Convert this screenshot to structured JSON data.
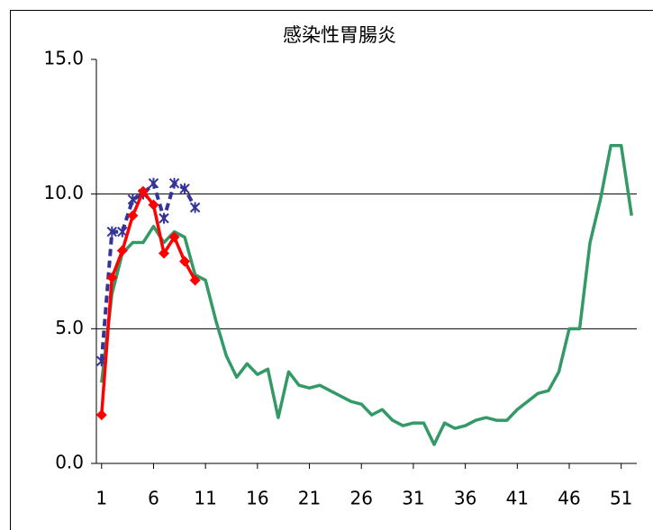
{
  "chart_data": {
    "type": "line",
    "title": "感染性胃腸炎",
    "x": [
      1,
      2,
      3,
      4,
      5,
      6,
      7,
      8,
      9,
      10,
      11,
      12,
      13,
      14,
      15,
      16,
      17,
      18,
      19,
      20,
      21,
      22,
      23,
      24,
      25,
      26,
      27,
      28,
      29,
      30,
      31,
      32,
      33,
      34,
      35,
      36,
      37,
      38,
      39,
      40,
      41,
      42,
      43,
      44,
      45,
      46,
      47,
      48,
      49,
      50,
      51,
      52
    ],
    "xlim": [
      0.5,
      52.5
    ],
    "xticks": [
      1,
      6,
      11,
      16,
      21,
      26,
      31,
      36,
      41,
      46,
      51
    ],
    "ylim": [
      0,
      15
    ],
    "yticks": [
      {
        "value": 0,
        "label": "0.0"
      },
      {
        "value": 5,
        "label": "5.0"
      },
      {
        "value": 10,
        "label": "10.0"
      },
      {
        "value": 15,
        "label": "15.0"
      }
    ],
    "grid": true,
    "series": [
      {
        "color": "#339966",
        "style": "solid",
        "marker": "none",
        "values": [
          3.0,
          6.3,
          7.8,
          8.2,
          8.2,
          8.8,
          8.2,
          8.6,
          8.4,
          7.0,
          6.8,
          5.3,
          4.0,
          3.2,
          3.7,
          3.3,
          3.5,
          1.7,
          3.4,
          2.9,
          2.8,
          2.9,
          2.7,
          2.5,
          2.3,
          2.2,
          1.8,
          2.0,
          1.6,
          1.4,
          1.5,
          1.5,
          0.7,
          1.5,
          1.3,
          1.4,
          1.6,
          1.7,
          1.6,
          1.6,
          2.0,
          2.3,
          2.6,
          2.7,
          3.4,
          5.0,
          5.0,
          8.2,
          9.8,
          11.8,
          11.8,
          9.2
        ]
      },
      {
        "color": "#333399",
        "style": "dashed",
        "marker": "asterisk",
        "values": [
          3.8,
          8.6,
          8.6,
          9.8,
          10.0,
          10.4,
          9.1,
          10.4,
          10.2,
          9.5,
          null,
          null,
          null,
          null,
          null,
          null,
          null,
          null,
          null,
          null,
          null,
          null,
          null,
          null,
          null,
          null,
          null,
          null,
          null,
          null,
          null,
          null,
          null,
          null,
          null,
          null,
          null,
          null,
          null,
          null,
          null,
          null,
          null,
          null,
          null,
          null,
          null,
          null,
          null,
          null,
          null,
          null
        ]
      },
      {
        "color": "#ff0000",
        "style": "solid",
        "marker": "diamond",
        "values": [
          1.8,
          6.9,
          7.9,
          9.2,
          10.1,
          9.6,
          7.8,
          8.4,
          7.5,
          6.8,
          null,
          null,
          null,
          null,
          null,
          null,
          null,
          null,
          null,
          null,
          null,
          null,
          null,
          null,
          null,
          null,
          null,
          null,
          null,
          null,
          null,
          null,
          null,
          null,
          null,
          null,
          null,
          null,
          null,
          null,
          null,
          null,
          null,
          null,
          null,
          null,
          null,
          null,
          null,
          null,
          null,
          null
        ]
      }
    ]
  }
}
